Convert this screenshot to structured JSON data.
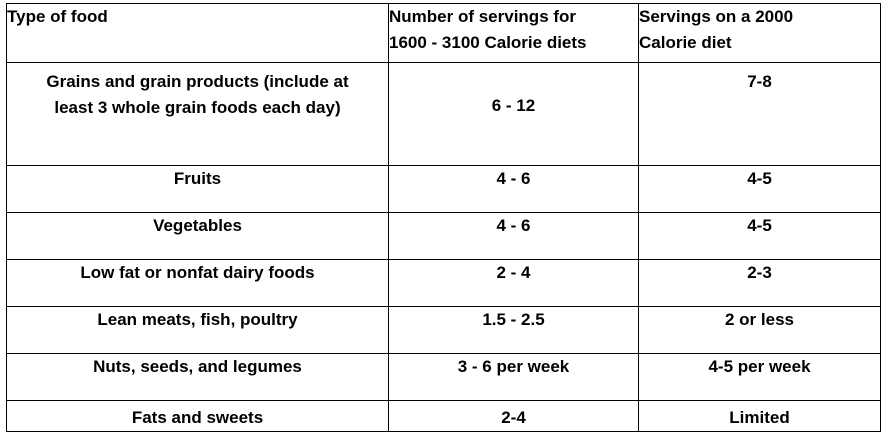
{
  "table": {
    "headers": {
      "food_type": "Type of food",
      "servings_range_line1": "Number of servings for",
      "servings_range_line2": "1600 - 3100 Calorie diets",
      "servings_2000_line1": "Servings on a 2000",
      "servings_2000_line2": "Calorie diet"
    },
    "rows": [
      {
        "food_line1": "Grains and grain products (include at",
        "food_line2": "least 3 whole grain foods each day)",
        "range": "6 - 12",
        "on2000": "7-8"
      },
      {
        "food": "Fruits",
        "range": "4 - 6",
        "on2000": "4-5"
      },
      {
        "food": "Vegetables",
        "range": "4 - 6",
        "on2000": "4-5"
      },
      {
        "food": "Low fat or nonfat dairy foods",
        "range": "2 - 4",
        "on2000": "2-3"
      },
      {
        "food": "Lean meats, fish, poultry",
        "range": "1.5 - 2.5",
        "on2000": "2 or less"
      },
      {
        "food": "Nuts, seeds, and legumes",
        "range": "3 - 6 per week",
        "on2000": "4-5 per week"
      },
      {
        "food": "Fats and sweets",
        "range": "2-4",
        "on2000": "Limited"
      }
    ]
  }
}
